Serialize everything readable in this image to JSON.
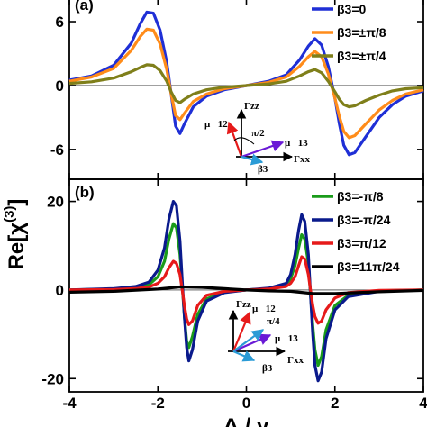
{
  "chart_data": [
    {
      "panel": "(a)",
      "type": "line",
      "xlim": [
        -4,
        4
      ],
      "ylim": [
        -8.8,
        8.2
      ],
      "yticks": [
        -6,
        0,
        6
      ],
      "ytick_labels": [
        "-6",
        "0",
        "6"
      ],
      "xticks": [
        -4,
        -2,
        0,
        2,
        4
      ],
      "legend_position": "top-right",
      "series": [
        {
          "name": "β3=0",
          "color": "#1f2fd6",
          "values": [
            [
              -4.0,
              0.5
            ],
            [
              -3.5,
              0.9
            ],
            [
              -3.0,
              1.9
            ],
            [
              -2.6,
              4.0
            ],
            [
              -2.4,
              5.8
            ],
            [
              -2.25,
              6.9
            ],
            [
              -2.1,
              6.8
            ],
            [
              -1.95,
              5.2
            ],
            [
              -1.8,
              2.2
            ],
            [
              -1.7,
              -0.8
            ],
            [
              -1.6,
              -3.8
            ],
            [
              -1.5,
              -4.5
            ],
            [
              -1.4,
              -3.6
            ],
            [
              -1.2,
              -2.0
            ],
            [
              -0.9,
              -1.0
            ],
            [
              -0.5,
              -0.4
            ],
            [
              0.0,
              0.0
            ],
            [
              0.5,
              0.4
            ],
            [
              0.9,
              1.0
            ],
            [
              1.2,
              2.4
            ],
            [
              1.4,
              3.7
            ],
            [
              1.55,
              4.4
            ],
            [
              1.7,
              3.8
            ],
            [
              1.85,
              1.8
            ],
            [
              2.0,
              -1.2
            ],
            [
              2.1,
              -3.6
            ],
            [
              2.2,
              -5.6
            ],
            [
              2.32,
              -6.5
            ],
            [
              2.45,
              -6.3
            ],
            [
              2.7,
              -4.8
            ],
            [
              3.0,
              -3.0
            ],
            [
              3.3,
              -1.8
            ],
            [
              3.6,
              -1.0
            ],
            [
              4.0,
              -0.5
            ]
          ]
        },
        {
          "name": "β3=±π/8",
          "color": "#ff8c1a",
          "values": [
            [
              -4.0,
              0.4
            ],
            [
              -3.5,
              0.8
            ],
            [
              -3.0,
              1.6
            ],
            [
              -2.6,
              3.3
            ],
            [
              -2.4,
              4.6
            ],
            [
              -2.25,
              5.3
            ],
            [
              -2.1,
              5.2
            ],
            [
              -1.95,
              3.9
            ],
            [
              -1.8,
              1.5
            ],
            [
              -1.7,
              -0.8
            ],
            [
              -1.6,
              -2.8
            ],
            [
              -1.5,
              -3.2
            ],
            [
              -1.4,
              -2.6
            ],
            [
              -1.2,
              -1.5
            ],
            [
              -0.9,
              -0.8
            ],
            [
              -0.5,
              -0.3
            ],
            [
              0.0,
              0.0
            ],
            [
              0.5,
              0.3
            ],
            [
              0.9,
              0.8
            ],
            [
              1.2,
              1.8
            ],
            [
              1.4,
              2.7
            ],
            [
              1.55,
              3.2
            ],
            [
              1.7,
              2.7
            ],
            [
              1.85,
              1.1
            ],
            [
              2.0,
              -1.2
            ],
            [
              2.1,
              -2.9
            ],
            [
              2.2,
              -4.3
            ],
            [
              2.32,
              -4.9
            ],
            [
              2.45,
              -4.7
            ],
            [
              2.7,
              -3.6
            ],
            [
              3.0,
              -2.3
            ],
            [
              3.3,
              -1.4
            ],
            [
              3.6,
              -0.8
            ],
            [
              4.0,
              -0.4
            ]
          ]
        },
        {
          "name": "β3=±π/4",
          "color": "#7f7f1a",
          "values": [
            [
              -4.0,
              0.2
            ],
            [
              -3.5,
              0.35
            ],
            [
              -3.0,
              0.7
            ],
            [
              -2.6,
              1.3
            ],
            [
              -2.4,
              1.7
            ],
            [
              -2.25,
              1.95
            ],
            [
              -2.1,
              1.9
            ],
            [
              -1.95,
              1.4
            ],
            [
              -1.8,
              0.4
            ],
            [
              -1.7,
              -0.6
            ],
            [
              -1.6,
              -1.4
            ],
            [
              -1.5,
              -1.6
            ],
            [
              -1.4,
              -1.3
            ],
            [
              -1.2,
              -0.8
            ],
            [
              -0.9,
              -0.4
            ],
            [
              -0.5,
              -0.15
            ],
            [
              0.0,
              0.0
            ],
            [
              0.5,
              0.15
            ],
            [
              0.9,
              0.4
            ],
            [
              1.2,
              0.9
            ],
            [
              1.4,
              1.3
            ],
            [
              1.55,
              1.5
            ],
            [
              1.7,
              1.2
            ],
            [
              1.85,
              0.4
            ],
            [
              2.0,
              -0.6
            ],
            [
              2.1,
              -1.3
            ],
            [
              2.2,
              -1.8
            ],
            [
              2.32,
              -2.0
            ],
            [
              2.45,
              -1.9
            ],
            [
              2.7,
              -1.4
            ],
            [
              3.0,
              -0.9
            ],
            [
              3.3,
              -0.5
            ],
            [
              3.6,
              -0.3
            ],
            [
              4.0,
              -0.2
            ]
          ]
        }
      ]
    },
    {
      "panel": "(b)",
      "type": "line",
      "xlim": [
        -4,
        4
      ],
      "ylim": [
        -23,
        25
      ],
      "yticks": [
        -20,
        0,
        20
      ],
      "ytick_labels": [
        "-20",
        "0",
        "20"
      ],
      "xticks": [
        -4,
        -2,
        0,
        2,
        4
      ],
      "xtick_labels": [
        "-4",
        "-2",
        "0",
        "2",
        "4"
      ],
      "legend_position": "top-right",
      "series": [
        {
          "name": "β3=-π/8",
          "color": "#1a9b1a",
          "values": [
            [
              -4.0,
              0.0
            ],
            [
              -3.0,
              0.2
            ],
            [
              -2.5,
              0.5
            ],
            [
              -2.2,
              1.2
            ],
            [
              -2.0,
              3.0
            ],
            [
              -1.85,
              6.5
            ],
            [
              -1.75,
              11.5
            ],
            [
              -1.65,
              15.0
            ],
            [
              -1.58,
              14.0
            ],
            [
              -1.5,
              8.0
            ],
            [
              -1.45,
              1.0
            ],
            [
              -1.4,
              -6.0
            ],
            [
              -1.35,
              -11.5
            ],
            [
              -1.3,
              -13.0
            ],
            [
              -1.22,
              -10.5
            ],
            [
              -1.1,
              -5.5
            ],
            [
              -0.9,
              -2.0
            ],
            [
              -0.5,
              -0.5
            ],
            [
              0.0,
              0.0
            ],
            [
              0.5,
              0.3
            ],
            [
              0.9,
              1.2
            ],
            [
              1.0,
              2.5
            ],
            [
              1.1,
              5.5
            ],
            [
              1.18,
              9.5
            ],
            [
              1.25,
              12.5
            ],
            [
              1.32,
              11.5
            ],
            [
              1.4,
              6.0
            ],
            [
              1.45,
              -1.0
            ],
            [
              1.5,
              -8.0
            ],
            [
              1.55,
              -13.5
            ],
            [
              1.62,
              -17.0
            ],
            [
              1.7,
              -15.0
            ],
            [
              1.8,
              -9.0
            ],
            [
              2.0,
              -3.5
            ],
            [
              2.3,
              -1.2
            ],
            [
              3.0,
              -0.2
            ],
            [
              4.0,
              0.0
            ]
          ]
        },
        {
          "name": "β3=-π/24",
          "color": "#0a1a8c",
          "values": [
            [
              -4.0,
              0.0
            ],
            [
              -3.0,
              0.3
            ],
            [
              -2.5,
              0.8
            ],
            [
              -2.2,
              1.8
            ],
            [
              -2.0,
              4.5
            ],
            [
              -1.85,
              9.5
            ],
            [
              -1.75,
              16.0
            ],
            [
              -1.65,
              20.0
            ],
            [
              -1.58,
              19.0
            ],
            [
              -1.5,
              11.0
            ],
            [
              -1.45,
              2.0
            ],
            [
              -1.4,
              -6.0
            ],
            [
              -1.35,
              -13.0
            ],
            [
              -1.3,
              -16.0
            ],
            [
              -1.22,
              -13.5
            ],
            [
              -1.1,
              -7.0
            ],
            [
              -0.9,
              -2.5
            ],
            [
              -0.5,
              -0.6
            ],
            [
              0.0,
              0.0
            ],
            [
              0.5,
              0.4
            ],
            [
              0.9,
              1.5
            ],
            [
              1.0,
              3.5
            ],
            [
              1.1,
              8.0
            ],
            [
              1.18,
              13.5
            ],
            [
              1.25,
              17.0
            ],
            [
              1.32,
              15.5
            ],
            [
              1.4,
              8.0
            ],
            [
              1.45,
              -1.0
            ],
            [
              1.5,
              -10.0
            ],
            [
              1.55,
              -17.0
            ],
            [
              1.62,
              -20.5
            ],
            [
              1.7,
              -18.5
            ],
            [
              1.8,
              -11.0
            ],
            [
              2.0,
              -4.5
            ],
            [
              2.3,
              -1.5
            ],
            [
              3.0,
              -0.3
            ],
            [
              4.0,
              0.0
            ]
          ]
        },
        {
          "name": "β3=π/12",
          "color": "#e61a1a",
          "values": [
            [
              -4.0,
              0.0
            ],
            [
              -3.0,
              0.1
            ],
            [
              -2.5,
              0.3
            ],
            [
              -2.2,
              0.7
            ],
            [
              -2.0,
              1.5
            ],
            [
              -1.85,
              3.0
            ],
            [
              -1.75,
              5.0
            ],
            [
              -1.65,
              6.5
            ],
            [
              -1.58,
              6.0
            ],
            [
              -1.5,
              3.5
            ],
            [
              -1.45,
              0.0
            ],
            [
              -1.4,
              -3.5
            ],
            [
              -1.35,
              -6.5
            ],
            [
              -1.3,
              -7.8
            ],
            [
              -1.22,
              -7.0
            ],
            [
              -1.1,
              -3.5
            ],
            [
              -0.9,
              -1.2
            ],
            [
              -0.5,
              -0.3
            ],
            [
              0.0,
              0.0
            ],
            [
              0.5,
              0.2
            ],
            [
              0.9,
              0.8
            ],
            [
              1.0,
              1.5
            ],
            [
              1.1,
              3.0
            ],
            [
              1.18,
              5.5
            ],
            [
              1.25,
              7.5
            ],
            [
              1.32,
              7.0
            ],
            [
              1.4,
              3.5
            ],
            [
              1.45,
              0.0
            ],
            [
              1.5,
              -3.5
            ],
            [
              1.55,
              -6.0
            ],
            [
              1.62,
              -7.5
            ],
            [
              1.7,
              -7.0
            ],
            [
              1.8,
              -4.5
            ],
            [
              2.0,
              -1.8
            ],
            [
              2.3,
              -0.6
            ],
            [
              3.0,
              -0.1
            ],
            [
              4.0,
              0.0
            ]
          ]
        },
        {
          "name": "β3=11π/24",
          "color": "#000000",
          "values": [
            [
              -4.0,
              -0.5
            ],
            [
              -3.0,
              -0.3
            ],
            [
              -2.0,
              0.2
            ],
            [
              -1.5,
              0.7
            ],
            [
              -1.0,
              0.6
            ],
            [
              -0.5,
              0.3
            ],
            [
              0.0,
              0.0
            ],
            [
              0.5,
              -0.2
            ],
            [
              1.0,
              -0.3
            ],
            [
              1.5,
              -0.8
            ],
            [
              2.0,
              -0.8
            ],
            [
              3.0,
              -0.4
            ],
            [
              4.0,
              -0.1
            ]
          ]
        }
      ]
    }
  ],
  "labels": {
    "panel_a": "(a)",
    "panel_b": "(b)",
    "ylabel_main": "Re[χ",
    "ylabel_sup": "(3)",
    "ylabel_close": "]",
    "xlabel": "Δ / γ"
  },
  "inset_a": {
    "gamma_zz": "Γzz",
    "gamma_xx": "Γxx",
    "mu12": "μ⃗12",
    "mu13": "μ⃗13",
    "beta3": "β3",
    "angle": "π/2"
  },
  "inset_b": {
    "gamma_zz": "Γzz",
    "gamma_xx": "Γxx",
    "mu12": "μ⃗12",
    "mu13": "μ⃗13",
    "beta3": "β3",
    "angle": "π/4"
  }
}
